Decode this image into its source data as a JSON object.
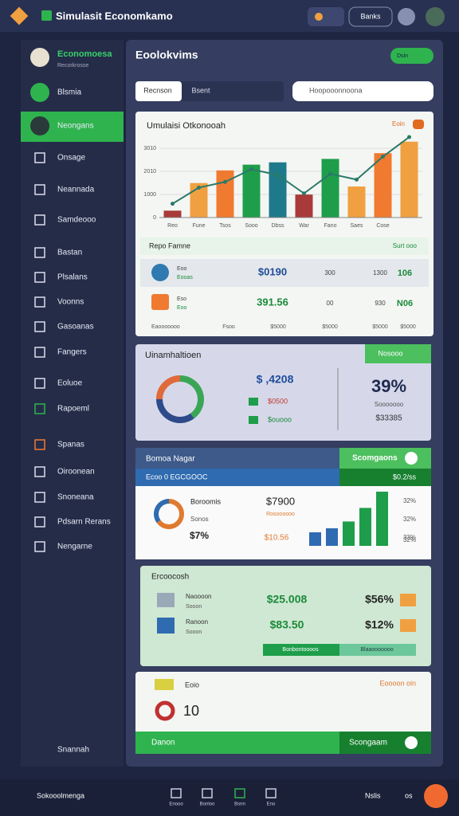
{
  "topbar": {
    "title": "Simulasit Economkamo",
    "button": "Banks"
  },
  "sidebar": {
    "profile": {
      "name": "Economoesa",
      "role": "Recorkrosse"
    },
    "items": [
      "Blsmia",
      "Neongans",
      "Onsage",
      "Neannada",
      "Samdeooo",
      "Bastan",
      "Plsalans",
      "Voonns",
      "Gasoanas",
      "Fangers",
      "Eoluoe",
      "Rapoeml",
      "Spanas",
      "Oiroonean",
      "Snoneana",
      "Pdsarn Rerans",
      "Nengarne"
    ],
    "footer": "Snannah"
  },
  "header": {
    "title": "Eoolokvims",
    "toggle": "Dsin"
  },
  "tabs": [
    "Recnson",
    "Bsent"
  ],
  "search": "Hoopooonnoona",
  "chart_data": {
    "type": "bar",
    "title": "Umulaisi Otkonooah",
    "categories": [
      "Reo",
      "Fune",
      "Tsos",
      "Sooo",
      "Dbss",
      "War",
      "Fano",
      "Saes",
      "Cose",
      null
    ],
    "series": [
      {
        "type": "bar",
        "values": [
          300,
          1500,
          2050,
          2300,
          2400,
          1000,
          2550,
          1350,
          2800,
          3300
        ],
        "colors": [
          "#a83a3a",
          "#f0a040",
          "#f07a30",
          "#1e9e4a",
          "#1e7a8a",
          "#a83a3a",
          "#1e9e4a",
          "#f0a040",
          "#f07a30",
          "#f0a040"
        ]
      },
      {
        "type": "line",
        "color": "#2a7a6a",
        "values": [
          600,
          1300,
          1550,
          2100,
          1850,
          1050,
          1900,
          1650,
          2650,
          3500
        ]
      }
    ],
    "ylim": [
      0,
      3500
    ],
    "yticks": [
      0,
      1000,
      2010,
      3010
    ],
    "grid": true
  },
  "chart_card": {
    "badge": "Eoin"
  },
  "table": {
    "title": "Repo Famne",
    "action": "Surt ooo",
    "rows": [
      {
        "name": "Eoo",
        "sub": "Eooas",
        "amount": "$0190",
        "cols": [
          "300",
          "1300"
        ],
        "delta": "106"
      },
      {
        "name": "Eso",
        "sub": "Eoo",
        "amount": "391.56",
        "cols": [
          "00",
          "930"
        ],
        "delta": "N06"
      }
    ],
    "footer": [
      "Eaooooooo",
      "Fsoo",
      "$5000",
      "$5000",
      "$5000",
      "$5000"
    ]
  },
  "card2": {
    "title": "Uinamhaltioen",
    "tag": "Nosooo",
    "amount": "$ ,4208",
    "legend": [
      "$0500",
      "$ouooo"
    ],
    "donut": [
      40,
      35,
      25
    ],
    "percent": "39%",
    "note": "Sooooooo",
    "total": "$33385"
  },
  "card3": {
    "head": [
      "Bomoa Nagar",
      "Scomgaons"
    ],
    "sub": [
      "Ecoo 0 EGCGOOC",
      "$0.2/ss"
    ],
    "labels": [
      "Boroomis",
      "Sonos"
    ],
    "value": "$7%",
    "amount": "$7900",
    "note": "Rosoooooo",
    "amount2": "$10.56",
    "donut": [
      65,
      35
    ],
    "bars": [
      20,
      26,
      36,
      56,
      80
    ],
    "percents": [
      "32%",
      "32%",
      "33%",
      "32%"
    ]
  },
  "card4": {
    "title": "Ercoocosh",
    "rows": [
      {
        "name": "Naoooon",
        "sub": "Sooon",
        "amount": "$25.008",
        "pct": "$56%"
      },
      {
        "name": "Ranoon",
        "sub": "Sooon",
        "amount": "$83.50",
        "pct": "$12%"
      }
    ],
    "buttons": [
      "Bonbontoooos",
      "Blaaooooooo"
    ]
  },
  "card5": {
    "title": "Eoio",
    "action": "Eoooon oin",
    "count": "10",
    "footer": [
      "Danon",
      "Scongaam"
    ]
  },
  "bottom": {
    "app": "Sokooolmenga",
    "nav": [
      "Enooo",
      "Bonloo",
      "Bsnn",
      "Eno"
    ],
    "right": "Nslis",
    "extra": "os"
  }
}
